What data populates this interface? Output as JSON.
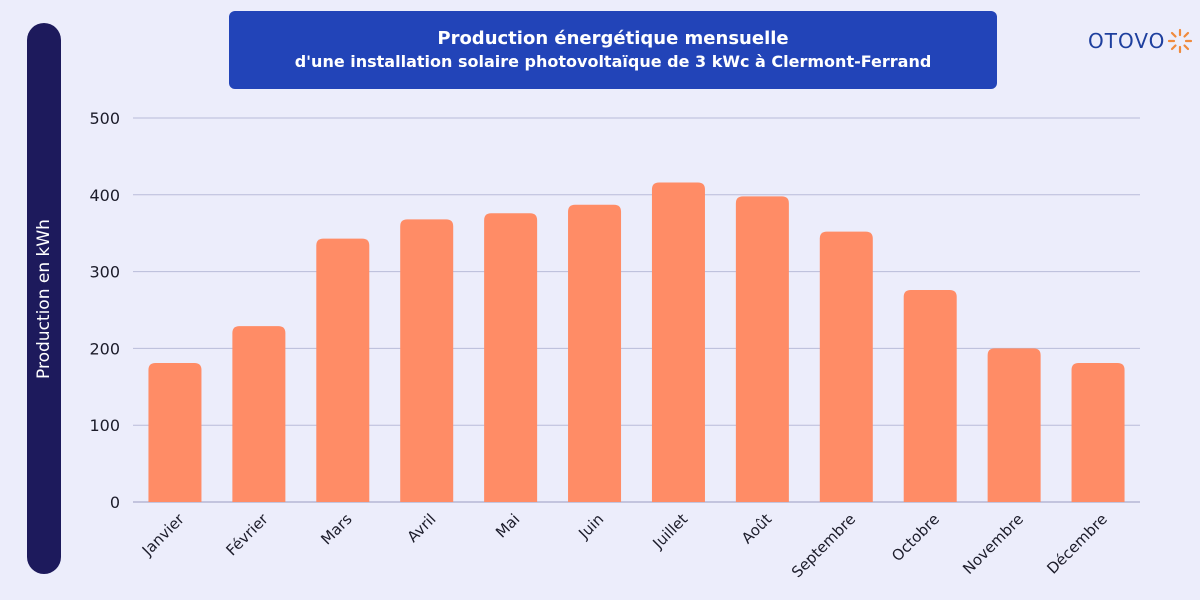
{
  "brand": {
    "logo_text": "OTOVO",
    "accent": "#f08a3c",
    "logo_color": "#1e3f9e"
  },
  "colors": {
    "bar": "#ff8c66",
    "title_bg": "#2244b8",
    "ylabel_bg": "#1d1a5c",
    "background": "#ecedfb",
    "grid": "#b9bbd9"
  },
  "chart_data": {
    "type": "bar",
    "title": "Production énergétique mensuelle",
    "subtitle": "d'une installation solaire photovoltaïque de 3 kWc à Clermont-Ferrand",
    "xlabel": "",
    "ylabel": "Production en kWh",
    "categories": [
      "Janvier",
      "Février",
      "Mars",
      "Avril",
      "Mai",
      "Juin",
      "Juillet",
      "Août",
      "Septembre",
      "Octobre",
      "Novembre",
      "Décembre"
    ],
    "values": [
      181,
      229,
      343,
      368,
      376,
      387,
      416,
      398,
      352,
      276,
      200,
      181
    ],
    "ylim": [
      0,
      500
    ],
    "yticks": [
      0,
      100,
      200,
      300,
      400,
      500
    ],
    "grid": true,
    "legend": "none"
  }
}
